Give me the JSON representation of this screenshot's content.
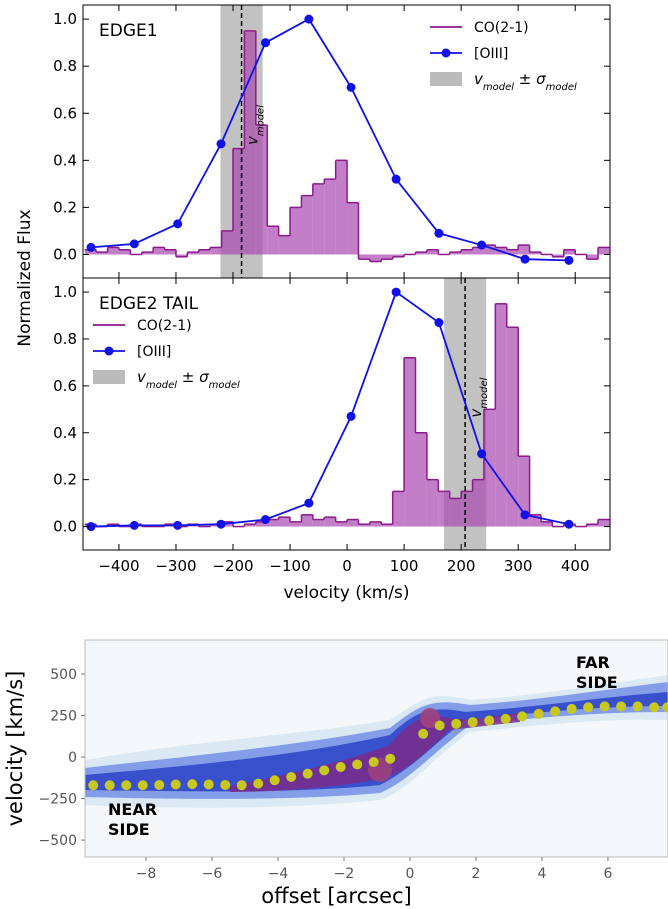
{
  "chart_data": [
    {
      "type": "spectrum",
      "title": "EDGE1",
      "ylabel": "Normalized Flux",
      "xlim": [
        -463,
        461
      ],
      "ylim": [
        -0.1,
        1.06
      ],
      "xticks": [
        -400,
        -300,
        -200,
        -100,
        0,
        100,
        200,
        300,
        400
      ],
      "xtick_labels": false,
      "yticks": [
        {
          "value": 0,
          "label": "0.0"
        },
        0.2,
        0.4,
        0.6,
        0.8,
        {
          "value": 1,
          "label": "1.0"
        }
      ],
      "legend": "upper right",
      "series": [
        {
          "name": "CO(2-1)",
          "color": "#8b1a8b",
          "bins": [
            -460,
            -440,
            -420,
            -400,
            -380,
            -360,
            -340,
            -320,
            -300,
            -280,
            -260,
            -240,
            -220,
            -200,
            -180,
            -160,
            -140,
            -120,
            -100,
            -80,
            -60,
            -40,
            -20,
            0,
            20,
            40,
            60,
            80,
            100,
            120,
            140,
            160,
            180,
            200,
            220,
            240,
            260,
            280,
            300,
            320,
            340,
            360,
            380,
            400,
            420,
            440,
            460
          ],
          "values": [
            0.02,
            0.01,
            0.03,
            0.02,
            0.0,
            0.01,
            0.03,
            0.02,
            -0.01,
            0.01,
            0.02,
            0.03,
            0.1,
            0.45,
            0.95,
            0.55,
            0.12,
            0.08,
            0.2,
            0.25,
            0.3,
            0.32,
            0.4,
            0.22,
            -0.02,
            -0.03,
            -0.02,
            -0.01,
            0.0,
            0.01,
            0.02,
            0.0,
            0.01,
            0.02,
            0.03,
            0.04,
            0.03,
            0.02,
            0.04,
            0.01,
            0.0,
            -0.01,
            0.02,
            0.0,
            -0.02,
            0.03
          ]
        },
        {
          "name": "[OIII]",
          "color": "#1010e8",
          "x": [
            -449,
            -373,
            -297,
            -221,
            -143,
            -67,
            7,
            86,
            161,
            236,
            312,
            389
          ],
          "values": [
            0.03,
            0.045,
            0.13,
            0.47,
            0.9,
            1.0,
            0.71,
            0.32,
            0.09,
            0.04,
            -0.02,
            -0.025
          ]
        }
      ],
      "band": {
        "center": -185,
        "halfwidth": 37,
        "color": "#bbbbbb",
        "label": [
          "v",
          "model",
          " ± σ",
          "model"
        ],
        "annotation": [
          "v",
          "model"
        ]
      }
    },
    {
      "type": "spectrum",
      "title": "EDGE2 TAIL",
      "xlabel": "velocity (km/s)",
      "xlim": [
        -463,
        461
      ],
      "ylim": [
        -0.1,
        1.06
      ],
      "xticks": [
        {
          "value": -400,
          "label": "−400"
        },
        {
          "value": -300,
          "label": "−300"
        },
        {
          "value": -200,
          "label": "−200"
        },
        {
          "value": -100,
          "label": "−100"
        },
        0,
        100,
        200,
        300,
        400
      ],
      "yticks": [
        {
          "value": 0,
          "label": "0.0"
        },
        0.2,
        0.4,
        0.6,
        0.8,
        {
          "value": 1,
          "label": "1.0"
        }
      ],
      "legend": "upper left",
      "series": [
        {
          "name": "CO(2-1)",
          "color": "#8b1a8b",
          "bins": [
            -460,
            -440,
            -420,
            -400,
            -380,
            -360,
            -340,
            -320,
            -300,
            -280,
            -260,
            -240,
            -220,
            -200,
            -180,
            -160,
            -140,
            -120,
            -100,
            -80,
            -60,
            -40,
            -20,
            0,
            20,
            40,
            60,
            80,
            100,
            120,
            140,
            160,
            180,
            200,
            220,
            240,
            260,
            280,
            300,
            320,
            340,
            360,
            380,
            400,
            420,
            440,
            460
          ],
          "values": [
            0.01,
            0.0,
            0.01,
            0.0,
            0.01,
            0.0,
            0.0,
            0.01,
            0.0,
            0.01,
            0.0,
            0.01,
            0.02,
            0.0,
            0.01,
            0.02,
            0.03,
            0.04,
            0.02,
            0.05,
            0.03,
            0.04,
            0.02,
            0.03,
            0.01,
            0.02,
            0.01,
            0.15,
            0.72,
            0.4,
            0.2,
            0.15,
            0.12,
            0.15,
            0.2,
            0.5,
            0.95,
            0.85,
            0.3,
            0.05,
            0.02,
            0.0,
            0.01,
            0.0,
            0.01,
            0.03
          ]
        },
        {
          "name": "[OIII]",
          "color": "#1010e8",
          "x": [
            -449,
            -373,
            -297,
            -221,
            -143,
            -67,
            7,
            86,
            161,
            236,
            312,
            389
          ],
          "values": [
            0.0,
            0.005,
            0.005,
            0.01,
            0.03,
            0.1,
            0.47,
            1.0,
            0.87,
            0.31,
            0.05,
            0.01
          ]
        }
      ],
      "band": {
        "center": 207,
        "halfwidth": 37,
        "color": "#bbbbbb",
        "label": [
          "v",
          "model",
          " ± σ",
          "model"
        ],
        "annotation": [
          "v",
          "model"
        ]
      }
    },
    {
      "type": "scatter",
      "xlabel": "offset [arcsec]",
      "ylabel": "velocity [km/s]",
      "xlim": [
        -9.85,
        7.82
      ],
      "ylim": [
        -602,
        705
      ],
      "xticks": [
        {
          "value": -8,
          "label": "−8"
        },
        {
          "value": -6,
          "label": "−6"
        },
        {
          "value": -4,
          "label": "−4"
        },
        {
          "value": -2,
          "label": "−2"
        },
        0,
        2,
        4,
        6
      ],
      "yticks": [
        500,
        250,
        0,
        {
          "value": -250,
          "label": "−250"
        },
        {
          "value": -500,
          "label": "−500"
        }
      ],
      "color": "#c8c81e",
      "x": [
        -9.6,
        -9.1,
        -8.6,
        -8.1,
        -7.6,
        -7.1,
        -6.6,
        -6.1,
        -5.6,
        -5.1,
        -4.6,
        -4.1,
        -3.6,
        -3.1,
        -2.6,
        -2.1,
        -1.6,
        -1.1,
        -0.6,
        0.4,
        0.9,
        1.4,
        1.9,
        2.4,
        2.9,
        3.4,
        3.9,
        4.4,
        4.9,
        5.4,
        5.9,
        6.4,
        6.9,
        7.4,
        7.8
      ],
      "values": [
        -170,
        -170,
        -170,
        -170,
        -168,
        -165,
        -163,
        -165,
        -168,
        -170,
        -160,
        -140,
        -120,
        -100,
        -80,
        -60,
        -45,
        -30,
        -10,
        140,
        190,
        200,
        210,
        220,
        230,
        245,
        260,
        275,
        290,
        300,
        305,
        305,
        305,
        300,
        300
      ],
      "annotations": [
        [
          "NEAR",
          "SIDE"
        ],
        [
          "FAR",
          "SIDE"
        ]
      ]
    }
  ]
}
